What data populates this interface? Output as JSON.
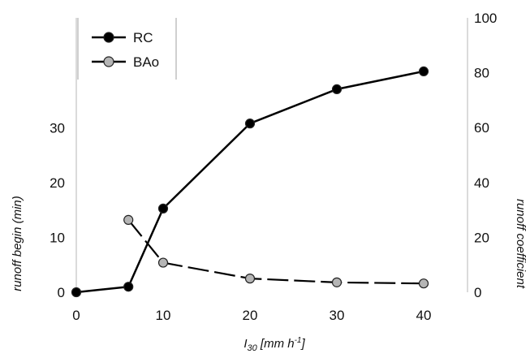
{
  "chart_data": {
    "type": "line",
    "x_label": {
      "symbol": "I",
      "subscript": "30",
      "unit": " [mm h",
      "exponent": "-1",
      "close": "]"
    },
    "y_left_label": "runoff begin (min)",
    "y_right_label": "runoff coefficient",
    "x_ticks": [
      "0",
      "10",
      "20",
      "30",
      "40"
    ],
    "y_left_ticks": [
      "0",
      "10",
      "20",
      "30"
    ],
    "y_right_ticks": [
      "0",
      "20",
      "40",
      "60",
      "80",
      "100"
    ],
    "xlim": [
      0,
      40
    ],
    "y_left_lim": [
      0,
      30
    ],
    "y_right_lim": [
      0,
      100
    ],
    "grid": false,
    "legend_position": "top-left",
    "series": [
      {
        "name": "RC",
        "axis": "right",
        "marker_color": "#000000",
        "line_style": "solid",
        "points": [
          [
            0,
            0
          ],
          [
            6,
            2
          ],
          [
            10,
            30.5
          ],
          [
            20,
            61.5
          ],
          [
            30,
            74
          ],
          [
            40,
            80.5
          ]
        ]
      },
      {
        "name": "BAo",
        "axis": "left",
        "marker_color": "#b5b5b5",
        "line_style": "dashed",
        "points": [
          [
            6,
            13.2
          ],
          [
            10,
            5.4
          ],
          [
            20,
            2.5
          ],
          [
            30,
            1.8
          ],
          [
            40,
            1.6
          ]
        ]
      }
    ]
  }
}
